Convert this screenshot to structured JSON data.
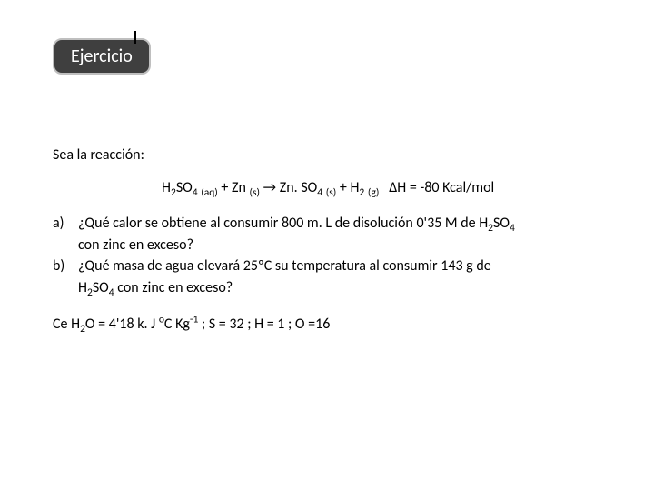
{
  "title": "Ejercicio",
  "intro": "Sea la reacción:",
  "reaction": {
    "sp1_base": "H",
    "sp1_sub1": "2",
    "sp1_mid": "SO",
    "sp1_sub2": "4",
    "st1": "(aq)",
    "plus1": "+ Zn",
    "st2": "(s)",
    "arrow": "→",
    "sp2": "Zn. SO",
    "sp2_sub": "4",
    "st3": "(s)",
    "plus2": "+ H",
    "sp3_sub": "2",
    "st4": "(g)",
    "delta": "Δ",
    "dh_tail": "H = -80  Kcal/mol"
  },
  "qa": {
    "label": "a)",
    "line1_a": "¿Qué calor se obtiene al consumir 800 m. L de disolución 0'35 M de H",
    "line1_s1": "2",
    "line1_b": "SO",
    "line1_s2": "4",
    "line2": "con zinc en exceso?"
  },
  "qb": {
    "label": "b)",
    "line1": "¿Qué masa de agua elevará 25ºC su temperatura al consumir 143 g de",
    "line2_a": "H",
    "line2_s1": "2",
    "line2_b": "SO",
    "line2_s2": "4",
    "line2_c": " con zinc en exceso?"
  },
  "foot": {
    "a": "Ce H",
    "s1": "2",
    "b": "O = 4'18 k. J ",
    "sup1": "o",
    "c": "C Kg",
    "sup2": "-1",
    "d": " ;  S = 32 ; H = 1 ; O =16"
  },
  "style": {
    "bg": "#ffffff",
    "title_bg": "#3f3f3f",
    "title_border": "#bfbfbf",
    "title_fg": "#ffffff",
    "text_color": "#000000",
    "body_fontsize": 16,
    "title_fontsize": 20
  }
}
